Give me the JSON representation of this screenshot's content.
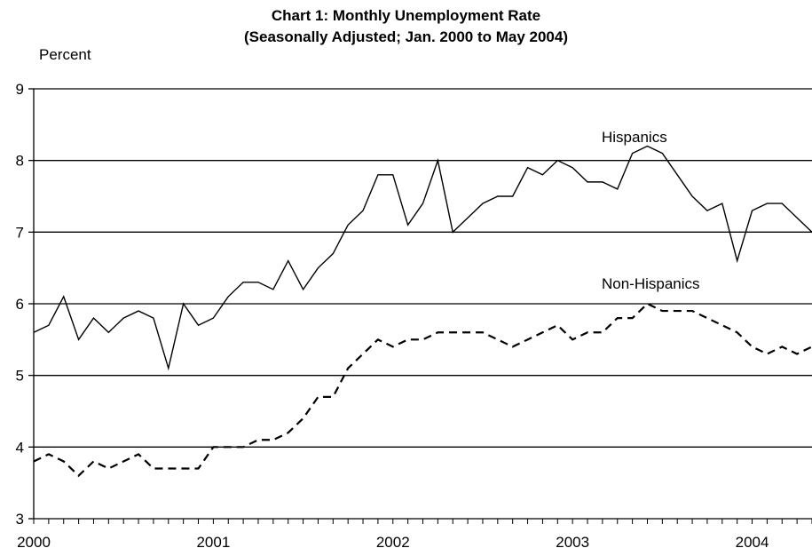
{
  "chart_data": {
    "type": "line",
    "title_line_1": "Chart 1: Monthly Unemployment Rate",
    "title_line_2": "(Seasonally Adjusted; Jan. 2000 to May 2004)",
    "ylabel": "Percent",
    "xlabel": "",
    "ylim": [
      3,
      9
    ],
    "yticks": [
      "3",
      "4",
      "5",
      "6",
      "7",
      "8",
      "9"
    ],
    "xticks": [
      "2000",
      "2001",
      "2002",
      "2003",
      "2004"
    ],
    "grid": true,
    "series": [
      {
        "name": "Hispanics",
        "style": "solid",
        "values": [
          5.6,
          5.7,
          6.1,
          5.5,
          5.8,
          5.6,
          5.8,
          5.9,
          5.8,
          5.1,
          6.0,
          5.7,
          5.8,
          6.1,
          6.3,
          6.3,
          6.2,
          6.6,
          6.2,
          6.5,
          6.7,
          7.1,
          7.3,
          7.8,
          7.8,
          7.1,
          7.4,
          8.0,
          7.0,
          7.2,
          7.4,
          7.5,
          7.5,
          7.9,
          7.8,
          8.0,
          7.9,
          7.7,
          7.7,
          7.6,
          8.1,
          8.2,
          8.1,
          7.8,
          7.5,
          7.3,
          7.4,
          6.6,
          7.3,
          7.4,
          7.4,
          7.2,
          7.0
        ]
      },
      {
        "name": "Non-Hispanics",
        "style": "dashed",
        "values": [
          3.8,
          3.9,
          3.8,
          3.6,
          3.8,
          3.7,
          3.8,
          3.9,
          3.7,
          3.7,
          3.7,
          3.7,
          4.0,
          4.0,
          4.0,
          4.1,
          4.1,
          4.2,
          4.4,
          4.7,
          4.7,
          5.1,
          5.3,
          5.5,
          5.4,
          5.5,
          5.5,
          5.6,
          5.6,
          5.6,
          5.6,
          5.5,
          5.4,
          5.5,
          5.6,
          5.7,
          5.5,
          5.6,
          5.6,
          5.8,
          5.8,
          6.0,
          5.9,
          5.9,
          5.9,
          5.8,
          5.7,
          5.6,
          5.4,
          5.3,
          5.4,
          5.3,
          5.4
        ]
      }
    ],
    "start": "Jan. 2000",
    "end": "May 2004",
    "frequency": "monthly"
  }
}
